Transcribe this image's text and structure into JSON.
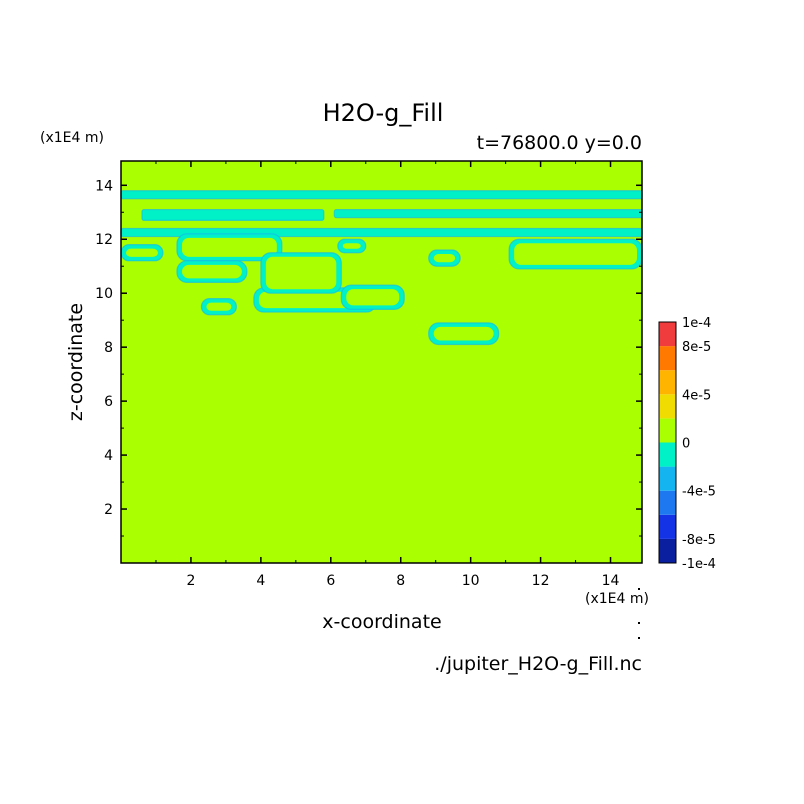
{
  "chart_data": {
    "type": "heatmap",
    "title": "H2O-g_Fill",
    "subtitle": "t=76800.0 y=0.0",
    "xlabel": "x-coordinate",
    "ylabel": "z-coordinate",
    "x_unit": "(x1E4 m)",
    "y_unit": "(x1E4 m)",
    "source_file": "./jupiter_H2O-g_Fill.nc",
    "xlim": [
      0,
      14.9
    ],
    "ylim": [
      0,
      14.9
    ],
    "x_ticks": [
      2,
      4,
      6,
      8,
      10,
      12,
      14
    ],
    "y_ticks": [
      2,
      4,
      6,
      8,
      10,
      12,
      14
    ],
    "background_level": "0",
    "colorbar": {
      "labels": [
        "1e-4",
        "8e-5",
        "4e-5",
        "0",
        "-4e-5",
        "-8e-5",
        "-1e-4"
      ],
      "label_values": [
        0.0001,
        8e-05,
        4e-05,
        0,
        -4e-05,
        -8e-05,
        -0.0001
      ],
      "levels": [
        -0.0001,
        -8e-05,
        -6e-05,
        -4e-05,
        -2e-05,
        0,
        2e-05,
        4e-05,
        6e-05,
        8e-05,
        0.0001
      ],
      "colors": [
        "#0a1ea0",
        "#1432e6",
        "#1e78f0",
        "#14b4f0",
        "#00f0c8",
        "#aaff00",
        "#f0dc00",
        "#ffb400",
        "#ff7800",
        "#f03c3c"
      ]
    },
    "features": [
      {
        "type": "band",
        "level": "-2e-5 to 0",
        "x": [
          0,
          14.9
        ],
        "z": [
          13.5,
          13.8
        ]
      },
      {
        "type": "band",
        "level": "-2e-5 to 0",
        "x": [
          0,
          14.9
        ],
        "z": [
          12.1,
          12.4
        ]
      },
      {
        "type": "band",
        "level": "-2e-5 to 0",
        "x": [
          0.6,
          5.8
        ],
        "z": [
          12.7,
          13.1
        ]
      },
      {
        "type": "band",
        "level": "-2e-5 to 0",
        "x": [
          6.1,
          14.9
        ],
        "z": [
          12.8,
          13.1
        ]
      },
      {
        "type": "blob",
        "level": "-2e-5 to 0",
        "x": [
          0,
          1.2
        ],
        "z": [
          11.2,
          11.8
        ]
      },
      {
        "type": "blob",
        "level": "-2e-5 to 0",
        "x": [
          1.6,
          4.6
        ],
        "z": [
          11.2,
          12.2
        ]
      },
      {
        "type": "blob",
        "level": "-2e-5 to 0",
        "x": [
          1.6,
          3.6
        ],
        "z": [
          10.4,
          11.2
        ]
      },
      {
        "type": "blob",
        "level": "-2e-5 to 0",
        "x": [
          2.3,
          3.3
        ],
        "z": [
          9.2,
          9.8
        ]
      },
      {
        "type": "blob",
        "level": "-2e-5 to 0",
        "x": [
          3.8,
          7.3
        ],
        "z": [
          9.3,
          10.2
        ]
      },
      {
        "type": "blob",
        "level": "-2e-5 to 0",
        "x": [
          4.0,
          6.3
        ],
        "z": [
          10.0,
          11.5
        ]
      },
      {
        "type": "blob",
        "level": "-2e-5 to 0",
        "x": [
          6.3,
          8.1
        ],
        "z": [
          9.4,
          10.3
        ]
      },
      {
        "type": "blob",
        "level": "-2e-5 to 0",
        "x": [
          6.2,
          7.0
        ],
        "z": [
          11.5,
          12.0
        ]
      },
      {
        "type": "blob",
        "level": "-2e-5 to 0",
        "x": [
          8.8,
          9.7
        ],
        "z": [
          11.0,
          11.6
        ]
      },
      {
        "type": "blob",
        "level": "-2e-5 to 0",
        "x": [
          11.1,
          14.9
        ],
        "z": [
          10.9,
          12.0
        ]
      },
      {
        "type": "blob",
        "level": "-2e-5 to 0",
        "x": [
          8.8,
          10.8
        ],
        "z": [
          8.1,
          8.9
        ]
      }
    ]
  }
}
